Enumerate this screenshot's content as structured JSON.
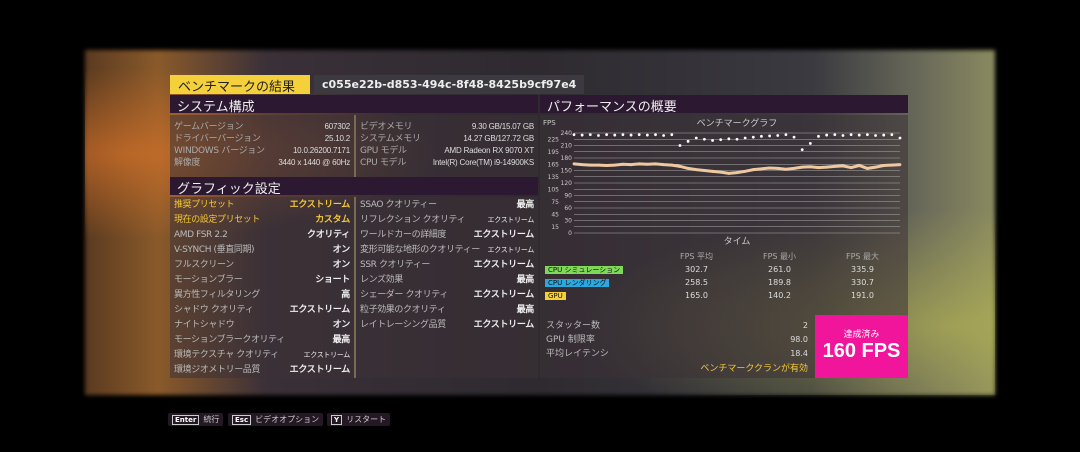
{
  "title": "ベンチマークの結果",
  "run_id": "c055e22b-d853-494c-8f48-8425b9cf97e4",
  "system": {
    "header": "システム構成",
    "left": [
      {
        "k": "ゲームバージョン",
        "v": "607302"
      },
      {
        "k": "ドライバーバージョン",
        "v": "25.10.2"
      },
      {
        "k": "WINDOWS バージョン",
        "v": "10.0.26200.7171"
      },
      {
        "k": "解像度",
        "v": "3440 x 1440 @ 60Hz"
      }
    ],
    "right": [
      {
        "k": "ビデオメモリ",
        "v": "9.30 GB/15.07 GB"
      },
      {
        "k": "システムメモリ",
        "v": "14.27 GB/127.72 GB"
      },
      {
        "k": "GPU モデル",
        "v": "AMD Radeon RX 9070 XT"
      },
      {
        "k": "CPU モデル",
        "v": "Intel(R) Core(TM) i9-14900KS"
      }
    ]
  },
  "graphics": {
    "header": "グラフィック設定",
    "left": [
      {
        "k": "推奨プリセット",
        "v": "エクストリーム"
      },
      {
        "k": "現在の設定プリセット",
        "v": "カスタム"
      },
      {
        "k": "AMD FSR 2.2",
        "v": "クオリティ"
      },
      {
        "k": "V-SYNCH (垂直同期)",
        "v": "オン"
      },
      {
        "k": "フルスクリーン",
        "v": "オン"
      },
      {
        "k": "モーションブラー",
        "v": "ショート"
      },
      {
        "k": "異方性フィルタリング",
        "v": "高"
      },
      {
        "k": "シャドウ クオリティ",
        "v": "エクストリーム"
      },
      {
        "k": "ナイトシャドウ",
        "v": "オン"
      },
      {
        "k": "モーションブラークオリティ",
        "v": "最高"
      },
      {
        "k": "環境テクスチャ クオリティ",
        "v": "エクストリーム"
      },
      {
        "k": "環境ジオメトリー品質",
        "v": "エクストリーム"
      }
    ],
    "right": [
      {
        "k": "SSAO クオリティー",
        "v": "最高"
      },
      {
        "k": "リフレクション クオリティ",
        "v": "エクストリーム"
      },
      {
        "k": "ワールドカーの詳細度",
        "v": "エクストリーム"
      },
      {
        "k": "変形可能な地形のクオリティー",
        "v": "エクストリーム"
      },
      {
        "k": "SSR クオリティー",
        "v": "エクストリーム"
      },
      {
        "k": "レンズ効果",
        "v": "最高"
      },
      {
        "k": "シェーダー クオリティ",
        "v": "エクストリーム"
      },
      {
        "k": "粒子効果のクオリティ",
        "v": "最高"
      },
      {
        "k": "レイトレーシング品質",
        "v": "エクストリーム"
      }
    ]
  },
  "performance": {
    "header": "パフォーマンスの概要",
    "columns": [
      "FPS 平均",
      "FPS 最小",
      "FPS 最大"
    ],
    "rows": [
      {
        "label": "CPU シミュレーション",
        "color": "#7ed957",
        "values": [
          "302.7",
          "261.0",
          "335.9"
        ]
      },
      {
        "label": "CPU レンダリング",
        "color": "#2aa8e0",
        "values": [
          "258.5",
          "189.8",
          "330.7"
        ]
      },
      {
        "label": "GPU",
        "color": "#f4d03a",
        "values": [
          "165.0",
          "140.2",
          "191.0"
        ]
      }
    ],
    "stats": [
      {
        "k": "スタッター数",
        "v": "2"
      },
      {
        "k": "GPU 制限率",
        "v": "98.0"
      },
      {
        "k": "平均レイテンシ",
        "v": "18.4"
      }
    ],
    "bench_status": "ベンチマーククランが有効",
    "achieved_label": "達成済み",
    "achieved_value": "160 FPS"
  },
  "chart_data": {
    "type": "scatter",
    "title": "ベンチマークグラフ",
    "xlabel": "タイム",
    "ylabel": "FPS",
    "ylim": [
      0,
      240
    ],
    "yticks": [
      240,
      225,
      210,
      195,
      180,
      165,
      150,
      135,
      120,
      105,
      90,
      75,
      60,
      45,
      30,
      15,
      0
    ],
    "grid": true,
    "series": [
      {
        "color": "#f0c8a0",
        "values": [
          166,
          164,
          163,
          163,
          162,
          163,
          165,
          164,
          166,
          165,
          166,
          164,
          163,
          160,
          155,
          152,
          150,
          148,
          146,
          143,
          145,
          148,
          152,
          154,
          156,
          155,
          153,
          155,
          158,
          159,
          157,
          158,
          160,
          161,
          157,
          162,
          155,
          158,
          162,
          163,
          164
        ]
      },
      {
        "color": "#ffffff",
        "values": [
          236,
          235,
          236,
          234,
          236,
          235,
          236,
          235,
          236,
          235,
          236,
          234,
          236,
          210,
          220,
          228,
          225,
          222,
          224,
          226,
          225,
          228,
          230,
          232,
          233,
          234,
          236,
          230,
          200,
          215,
          232,
          235,
          236,
          234,
          236,
          235,
          236,
          234,
          235,
          236,
          228
        ]
      }
    ]
  },
  "footer": [
    {
      "key": "Enter",
      "label": "続行"
    },
    {
      "key": "Esc",
      "label": "ビデオオプション"
    },
    {
      "key": "Y",
      "label": "リスタート"
    }
  ]
}
